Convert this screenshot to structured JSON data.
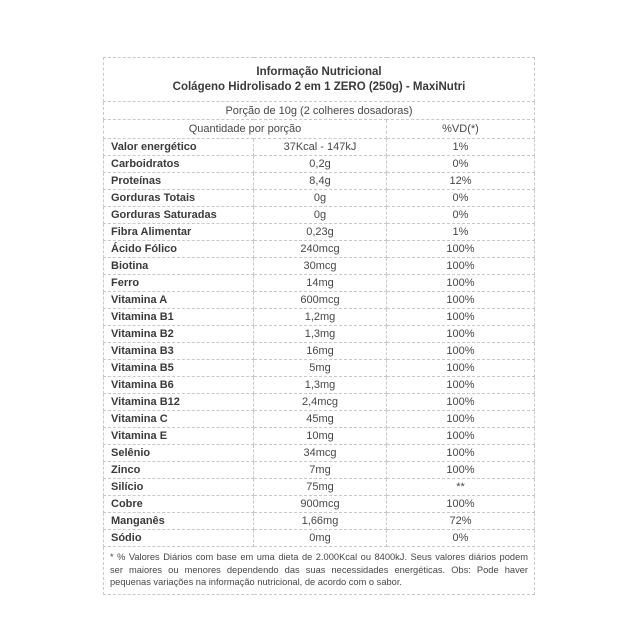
{
  "colors": {
    "background": "#ffffff",
    "text": "#474747",
    "label_text": "#3a3a3a",
    "border": "#c9c9c9"
  },
  "header": {
    "title": "Informação Nutricional",
    "subtitle": "Colágeno Hidrolisado 2 em 1 ZERO (250g) - MaxiNutri",
    "serving": "Porção de 10g (2 colheres dosadoras)"
  },
  "table": {
    "quantity_header": "Quantidade por porção",
    "vd_header": "%VD(*)",
    "rows": [
      {
        "name": "Valor energético",
        "amount": "37Kcal - 147kJ",
        "vd": "1%"
      },
      {
        "name": "Carboidratos",
        "amount": "0,2g",
        "vd": "0%"
      },
      {
        "name": "Proteínas",
        "amount": "8,4g",
        "vd": "12%"
      },
      {
        "name": "Gorduras Totais",
        "amount": "0g",
        "vd": "0%"
      },
      {
        "name": "Gorduras Saturadas",
        "amount": "0g",
        "vd": "0%"
      },
      {
        "name": "Fibra Alimentar",
        "amount": "0,23g",
        "vd": "1%"
      },
      {
        "name": "Ácido Fólico",
        "amount": "240mcg",
        "vd": "100%"
      },
      {
        "name": "Biotina",
        "amount": "30mcg",
        "vd": "100%"
      },
      {
        "name": "Ferro",
        "amount": "14mg",
        "vd": "100%"
      },
      {
        "name": "Vitamina A",
        "amount": "600mcg",
        "vd": "100%"
      },
      {
        "name": "Vitamina B1",
        "amount": "1,2mg",
        "vd": "100%"
      },
      {
        "name": "Vitamina B2",
        "amount": "1,3mg",
        "vd": "100%"
      },
      {
        "name": "Vitamina B3",
        "amount": "16mg",
        "vd": "100%"
      },
      {
        "name": "Vitamina B5",
        "amount": "5mg",
        "vd": "100%"
      },
      {
        "name": "Vitamina B6",
        "amount": "1,3mg",
        "vd": "100%"
      },
      {
        "name": "Vitamina B12",
        "amount": "2,4mcg",
        "vd": "100%"
      },
      {
        "name": "Vitamina C",
        "amount": "45mg",
        "vd": "100%"
      },
      {
        "name": "Vitamina E",
        "amount": "10mg",
        "vd": "100%"
      },
      {
        "name": "Selênio",
        "amount": "34mcg",
        "vd": "100%"
      },
      {
        "name": "Zinco",
        "amount": "7mg",
        "vd": "100%"
      },
      {
        "name": "Silício",
        "amount": "75mg",
        "vd": "**"
      },
      {
        "name": "Cobre",
        "amount": "900mcg",
        "vd": "100%"
      },
      {
        "name": "Manganês",
        "amount": "1,66mg",
        "vd": "72%"
      },
      {
        "name": "Sódio",
        "amount": "0mg",
        "vd": "0%"
      }
    ]
  },
  "footnote": "* % Valores Diários com base em uma dieta de 2.000Kcal ou 8400kJ. Seus valores diários podem ser maiores ou menores dependendo das suas necessidades energéticas. Obs: Pode haver pequenas variações na informação nutricional, de acordo com o sabor."
}
